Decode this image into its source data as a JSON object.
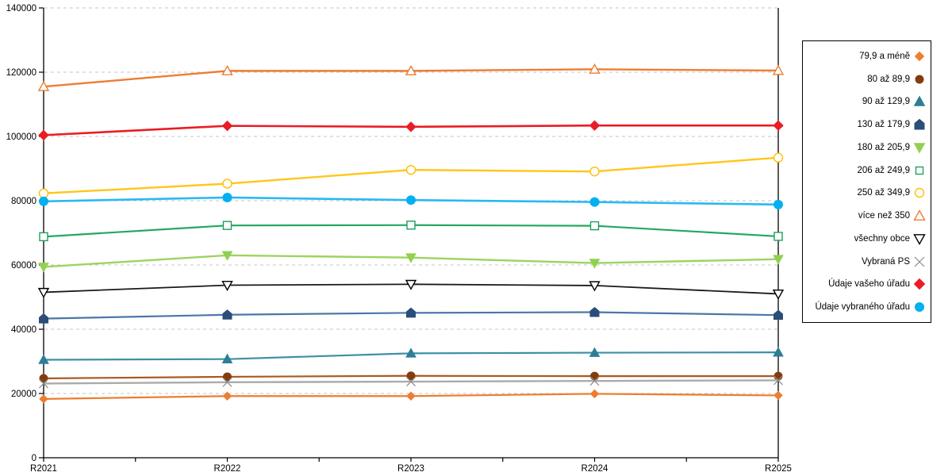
{
  "chart_data": {
    "type": "line",
    "title": "",
    "xlabel": "",
    "ylabel": "",
    "categories": [
      "R2021",
      "R2022",
      "R2023",
      "R2024",
      "R2025"
    ],
    "ylim": [
      0,
      140000
    ],
    "ytick_step": 20000,
    "y_tick_labels": [
      "0",
      "20000",
      "40000",
      "60000",
      "80000",
      "100000",
      "120000",
      "140000"
    ],
    "grid": "horizontal-dashed",
    "grid_color": "#c6c6c6",
    "axis_color": "#000000",
    "legend_position": "right",
    "series": [
      {
        "name": "79,9 a méně",
        "marker": "diamond",
        "style": "filled",
        "color": "#ED7D31",
        "line_color": "#ED7D31",
        "size": 5,
        "width": 2.2,
        "values": [
          18300,
          19200,
          19200,
          19900,
          19400
        ]
      },
      {
        "name": "80 až 89,9",
        "marker": "circle",
        "style": "filled",
        "color": "#843C0C",
        "line_color": "#A9591F",
        "size": 5,
        "width": 2.2,
        "values": [
          24700,
          25200,
          25500,
          25400,
          25400
        ]
      },
      {
        "name": "90 až 129,9",
        "marker": "triangle-up",
        "style": "filled",
        "color": "#2E7E95",
        "line_color": "#3C90A6",
        "size": 6,
        "width": 2.2,
        "values": [
          30500,
          30700,
          32500,
          32700,
          32800
        ]
      },
      {
        "name": "130 až 179,9",
        "marker": "pentagon",
        "style": "filled",
        "color": "#2A4E79",
        "line_color": "#4A77A8",
        "size": 5.5,
        "width": 2.2,
        "values": [
          43300,
          44500,
          45100,
          45300,
          44400
        ]
      },
      {
        "name": "180 až 205,9",
        "marker": "triangle-down",
        "style": "filled",
        "color": "#92D050",
        "line_color": "#9CD45E",
        "size": 6,
        "width": 2.4,
        "values": [
          59400,
          63000,
          62300,
          60600,
          61800
        ]
      },
      {
        "name": "206 až 249,9",
        "marker": "square",
        "style": "open",
        "color": "#1FA05A",
        "line_color": "#22A861",
        "size": 5,
        "width": 2.2,
        "values": [
          68800,
          72300,
          72400,
          72200,
          68900
        ]
      },
      {
        "name": "250 až 349,9",
        "marker": "circle",
        "style": "open",
        "color": "#FFC000",
        "line_color": "#FFC61A",
        "size": 5.5,
        "width": 2.4,
        "values": [
          82300,
          85300,
          89600,
          89100,
          93400
        ]
      },
      {
        "name": "více než 350",
        "marker": "triangle-up",
        "style": "open",
        "color": "#ED7D31",
        "line_color": "#ED7D31",
        "size": 6,
        "width": 2.4,
        "values": [
          115500,
          120400,
          120400,
          120900,
          120500
        ]
      },
      {
        "name": "všechny obce",
        "marker": "triangle-down",
        "style": "open",
        "color": "#000000",
        "line_color": "#1A1A1A",
        "size": 6,
        "width": 1.8,
        "values": [
          51500,
          53700,
          54000,
          53600,
          51000
        ]
      },
      {
        "name": "Vybraná PS",
        "marker": "x",
        "style": "cross",
        "color": "#8C8C8C",
        "line_color": "#ABABAB",
        "size": 5.5,
        "width": 2.4,
        "values": [
          23100,
          23500,
          23700,
          23900,
          24100
        ]
      },
      {
        "name": "Údaje vašeho úřadu",
        "marker": "diamond",
        "style": "filled",
        "color": "#EB1C24",
        "line_color": "#EB1C24",
        "size": 6,
        "width": 2.6,
        "values": [
          100400,
          103300,
          103000,
          103400,
          103400
        ]
      },
      {
        "name": "Údaje vybraného úřadu",
        "marker": "circle",
        "style": "filled",
        "color": "#00B0F0",
        "line_color": "#29B9F2",
        "size": 5.5,
        "width": 2.6,
        "values": [
          79800,
          81000,
          80200,
          79600,
          78800
        ]
      }
    ]
  }
}
